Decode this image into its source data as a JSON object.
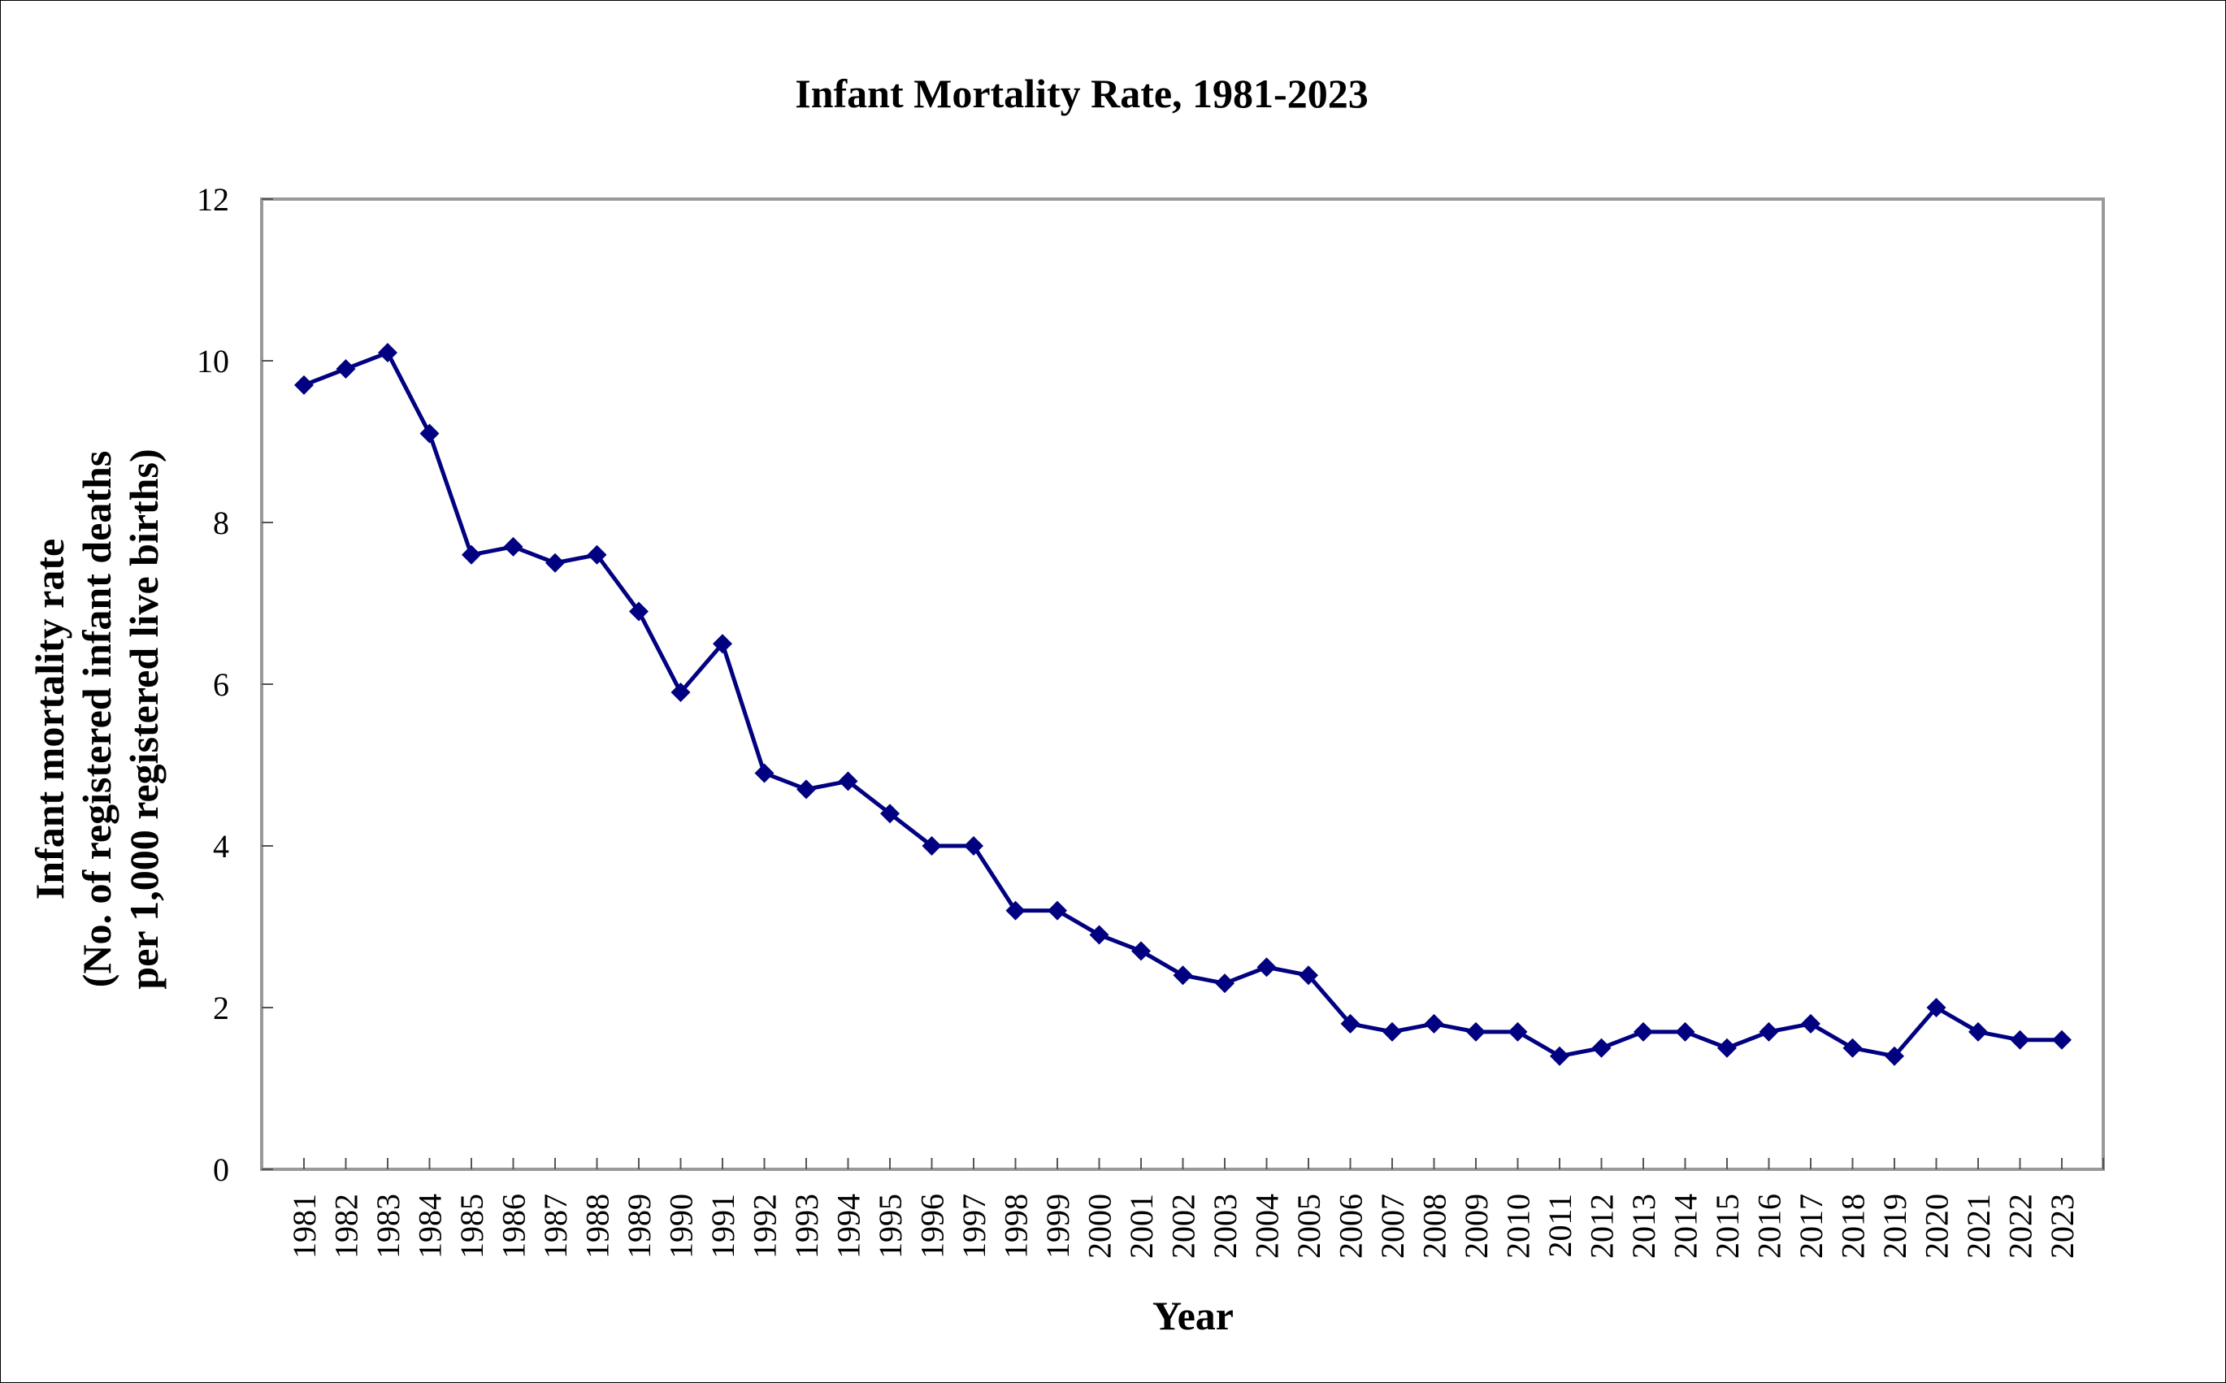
{
  "chart_data": {
    "type": "line",
    "title": "Infant Mortality Rate, 1981-2023",
    "xlabel": "Year",
    "ylabel_lines": [
      "Infant mortality rate",
      "(No. of registered infant deaths",
      "per 1,000 registered live births)"
    ],
    "ylim": [
      0,
      12
    ],
    "yticks": [
      0,
      2,
      4,
      6,
      8,
      10,
      12
    ],
    "ytick_labels": [
      "0",
      "2",
      "4",
      "6",
      "8",
      "10",
      "12"
    ],
    "grid": false,
    "legend": "none",
    "categories": [
      "1981",
      "1982",
      "1983",
      "1984",
      "1985",
      "1986",
      "1987",
      "1988",
      "1989",
      "1990",
      "1991",
      "1992",
      "1993",
      "1994",
      "1995",
      "1996",
      "1997",
      "1998",
      "1999",
      "2000",
      "2001",
      "2002",
      "2003",
      "2004",
      "2005",
      "2006",
      "2007",
      "2008",
      "2009",
      "2010",
      "2011",
      "2012",
      "2013",
      "2014",
      "2015",
      "2016",
      "2017",
      "2018",
      "2019",
      "2020",
      "2021",
      "2022",
      "2023"
    ],
    "series": [
      {
        "name": "Infant mortality rate",
        "color": "#000080",
        "marker": "diamond",
        "values": [
          9.7,
          9.9,
          10.1,
          9.1,
          7.6,
          7.7,
          7.5,
          7.6,
          6.9,
          5.9,
          6.5,
          4.9,
          4.7,
          4.8,
          4.4,
          4.0,
          4.0,
          3.2,
          3.2,
          2.9,
          2.7,
          2.4,
          2.3,
          2.5,
          2.4,
          1.8,
          1.7,
          1.8,
          1.7,
          1.7,
          1.4,
          1.5,
          1.7,
          1.7,
          1.5,
          1.7,
          1.8,
          1.5,
          1.4,
          2.0,
          1.7,
          1.6,
          1.6
        ]
      }
    ]
  }
}
